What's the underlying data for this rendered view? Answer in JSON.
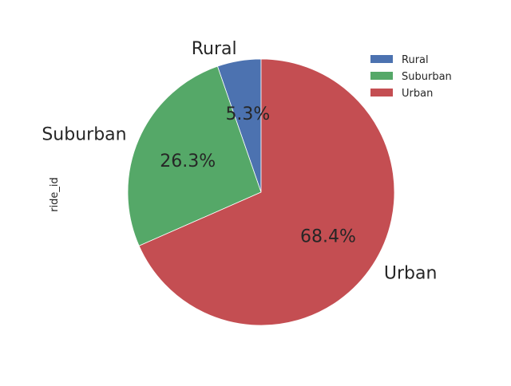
{
  "chart_data": {
    "type": "pie",
    "ylabel": "ride_id",
    "categories": [
      "Rural",
      "Suburban",
      "Urban"
    ],
    "values": [
      5.3,
      26.3,
      68.4
    ],
    "value_labels": [
      "5.3%",
      "26.3%",
      "68.4%"
    ],
    "colors": [
      "#4c72b0",
      "#55a868",
      "#c44e52"
    ],
    "start_angle_deg": 90,
    "direction": "counterclockwise",
    "legend": {
      "position": "top-right",
      "entries": [
        "Rural",
        "Suburban",
        "Urban"
      ]
    }
  }
}
